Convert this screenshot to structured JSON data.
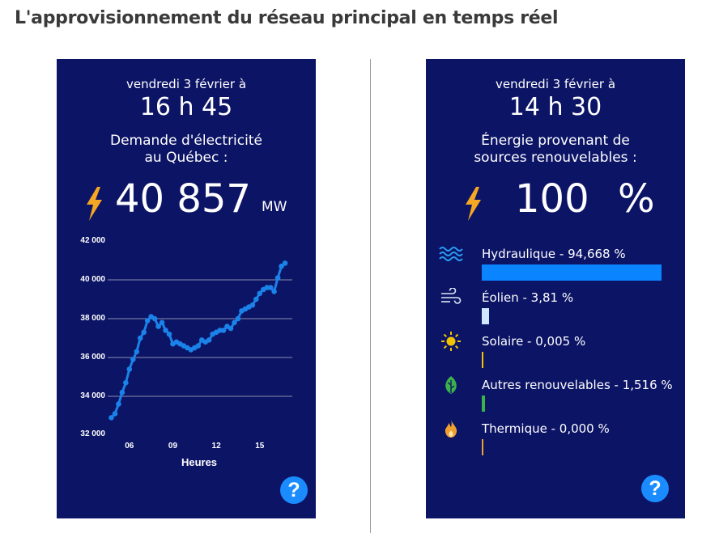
{
  "page_title": "L'approvisionnement du réseau principal en temps réel",
  "left_panel": {
    "date": "vendredi 3 février à",
    "time": "16 h 45",
    "description_line1": "Demande d'électricité",
    "description_line2": "au Québec :",
    "value": "40 857",
    "unit": "MW",
    "help_label": "?"
  },
  "right_panel": {
    "date": "vendredi 3 février à",
    "time": "14 h 30",
    "description_line1": "Énergie provenant de",
    "description_line2": "sources renouvelables :",
    "value": "100",
    "unit": "%",
    "help_label": "?",
    "sources": [
      {
        "label": "Hydraulique - 94,668 %",
        "percent": 94.668,
        "color": "#0a84ff",
        "icon": "water-waves-icon"
      },
      {
        "label": "Éolien - 3,81 %",
        "percent": 3.81,
        "color": "#cfe8ff",
        "icon": "wind-icon"
      },
      {
        "label": "Solaire - 0,005 %",
        "percent": 0.005,
        "color": "#f2c200",
        "icon": "sun-icon"
      },
      {
        "label": "Autres renouvelables - 1,516 %",
        "percent": 1.516,
        "color": "#3cb34a",
        "icon": "leaf-icon"
      },
      {
        "label": "Thermique - 0,000 %",
        "percent": 0.0,
        "color": "#f0a030",
        "icon": "flame-icon"
      }
    ]
  },
  "colors": {
    "panel_bg": "#0c1466",
    "line": "#1a82e8",
    "bolt": "#f5a623",
    "help": "#1a8cff"
  },
  "chart_data": {
    "type": "line",
    "title": "",
    "xlabel": "Heures",
    "ylabel": "",
    "ylim": [
      32000,
      42000
    ],
    "xlim": [
      4.5,
      17.25
    ],
    "x_ticks": [
      6,
      9,
      12,
      15
    ],
    "x_tick_labels": [
      "06",
      "09",
      "12",
      "15"
    ],
    "y_ticks": [
      32000,
      34000,
      36000,
      38000,
      40000,
      42000
    ],
    "y_tick_labels": [
      "32 000",
      "34 000",
      "36 000",
      "38 000",
      "40 000",
      "42 000"
    ],
    "grid": true,
    "series": [
      {
        "x": [
          4.75,
          5.0,
          5.25,
          5.5,
          5.75,
          6.0,
          6.25,
          6.5,
          6.75,
          7.0,
          7.25,
          7.5,
          7.75,
          8.0,
          8.25,
          8.5,
          8.75,
          9.0,
          9.25,
          9.5,
          9.75,
          10.0,
          10.25,
          10.5,
          10.75,
          11.0,
          11.25,
          11.5,
          11.75,
          12.0,
          12.25,
          12.5,
          12.75,
          13.0,
          13.25,
          13.5,
          13.75,
          14.0,
          14.25,
          14.5,
          14.75,
          15.0,
          15.25,
          15.5,
          15.75,
          16.0,
          16.25,
          16.5,
          16.75
        ],
        "y": [
          32900,
          33100,
          33600,
          34200,
          34700,
          35400,
          35900,
          36300,
          37000,
          37300,
          37900,
          38100,
          38000,
          37600,
          37800,
          37400,
          37200,
          36700,
          36800,
          36700,
          36600,
          36500,
          36400,
          36500,
          36600,
          36900,
          36800,
          36900,
          37200,
          37300,
          37400,
          37400,
          37600,
          37500,
          37800,
          38000,
          38400,
          38500,
          38600,
          38700,
          39000,
          39300,
          39500,
          39600,
          39600,
          39400,
          40100,
          40700,
          40857
        ]
      }
    ]
  }
}
